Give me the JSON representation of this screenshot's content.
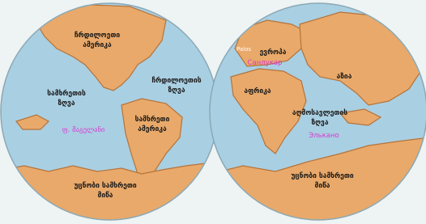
{
  "left_hemisphere": {
    "labels": {
      "north_america": [
        "ჩრდილოეთი",
        "ამერიკა"
      ],
      "south_sea": [
        "სამხრეთის",
        "ზღვა"
      ],
      "north_sea": [
        "ჩრდილოეთის",
        "ზღვა"
      ],
      "south_america": [
        "სამხრეთი",
        "ამერიკა"
      ],
      "magellan": [
        "ფ. მაგელანი"
      ],
      "unknown_land": [
        "უცნობი სამხრეთი",
        "მიწა"
      ]
    }
  },
  "right_hemisphere": {
    "labels": {
      "palos": [
        "Palos"
      ],
      "europe": [
        "ევროპა"
      ],
      "sanlucar": [
        "Санлукар"
      ],
      "asia": [
        "აზია"
      ],
      "africa": [
        "აფრიკა"
      ],
      "east_sea": [
        "აღმოსავლეთის",
        "ზღვა"
      ],
      "elcano": [
        "Элькано"
      ],
      "unknown_land": [
        "უცნობი სამხრეთი",
        "მიწა"
      ]
    }
  }
}
